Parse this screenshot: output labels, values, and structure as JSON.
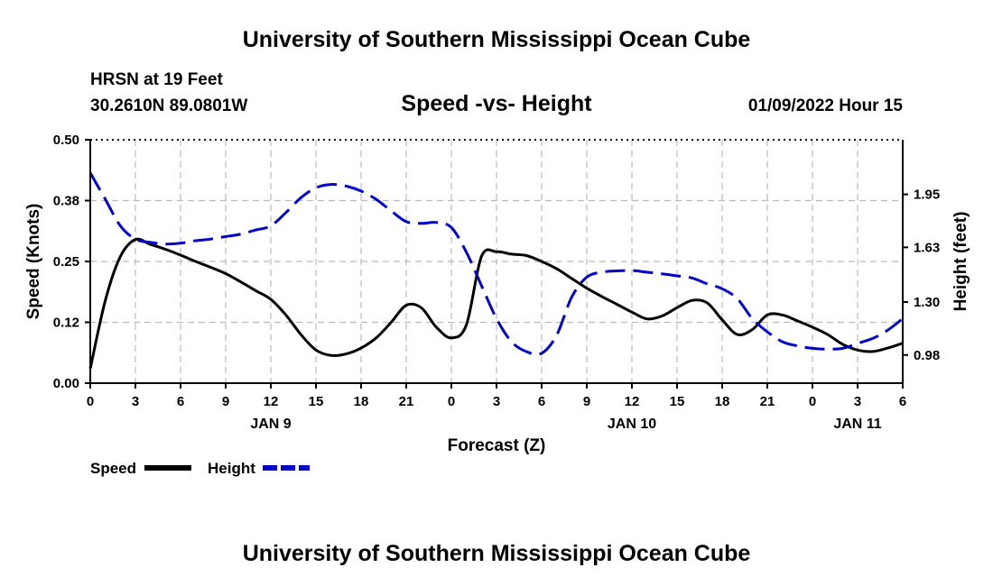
{
  "header": {
    "title": "University of Southern Mississippi Ocean Cube",
    "station": "HRSN at 19 Feet",
    "coords": "30.2610N  89.0801W",
    "subtitle": "Speed -vs- Height",
    "datetime": "01/09/2022 Hour 15"
  },
  "footer": {
    "title": "University of Southern Mississippi Ocean Cube"
  },
  "chart_data": {
    "type": "line",
    "title": "Speed -vs- Height",
    "xlabel": "Forecast (Z)",
    "ylabel": "Speed (Knots)",
    "y2label": "Height (feet)",
    "x_range": [
      0,
      54
    ],
    "ylim": [
      0,
      0.5
    ],
    "y2lim": [
      0.81,
      2.28
    ],
    "x_ticks": [
      0,
      3,
      6,
      9,
      12,
      15,
      18,
      21,
      24,
      27,
      30,
      33,
      36,
      39,
      42,
      45,
      48,
      51,
      54
    ],
    "x_tick_labels": [
      "0",
      "3",
      "6",
      "9",
      "12",
      "15",
      "18",
      "21",
      "0",
      "3",
      "6",
      "9",
      "12",
      "15",
      "18",
      "21",
      "0",
      "3",
      "6"
    ],
    "day_labels": [
      {
        "x": 12,
        "label": "JAN 9"
      },
      {
        "x": 36,
        "label": "JAN 10"
      },
      {
        "x": 51,
        "label": "JAN 11"
      }
    ],
    "y_ticks": [
      0,
      0.125,
      0.25,
      0.375,
      0.5
    ],
    "y_tick_labels": [
      "0.00",
      "0.12",
      "0.25",
      "0.38",
      "0.50"
    ],
    "y2_ticks": [
      0.98,
      1.3,
      1.63,
      1.95
    ],
    "y2_tick_labels": [
      "0.98",
      "1.30",
      "1.63",
      "1.95"
    ],
    "grid": true,
    "legend_position": "bottom-left",
    "series": [
      {
        "name": "Speed",
        "axis": "left",
        "color": "#000000",
        "dash": "solid",
        "x": [
          0,
          1,
          2,
          3,
          4,
          5,
          6,
          7,
          8,
          9,
          10,
          11,
          12,
          13,
          14,
          15,
          16,
          17,
          18,
          19,
          20,
          21,
          22,
          23,
          24,
          25,
          26,
          27,
          28,
          29,
          30,
          31,
          32,
          33,
          34,
          35,
          36,
          37,
          38,
          39,
          40,
          41,
          42,
          43,
          44,
          45,
          46,
          47,
          48,
          49,
          50,
          51,
          52,
          53,
          54
        ],
        "values": [
          0.03,
          0.17,
          0.26,
          0.295,
          0.285,
          0.275,
          0.263,
          0.25,
          0.238,
          0.225,
          0.208,
          0.19,
          0.172,
          0.14,
          0.1,
          0.068,
          0.057,
          0.06,
          0.072,
          0.093,
          0.125,
          0.16,
          0.155,
          0.115,
          0.093,
          0.12,
          0.26,
          0.27,
          0.265,
          0.262,
          0.25,
          0.235,
          0.215,
          0.195,
          0.178,
          0.162,
          0.146,
          0.132,
          0.138,
          0.155,
          0.17,
          0.165,
          0.13,
          0.1,
          0.11,
          0.14,
          0.14,
          0.128,
          0.115,
          0.1,
          0.08,
          0.068,
          0.065,
          0.072,
          0.082
        ]
      },
      {
        "name": "Height",
        "axis": "right",
        "color": "#0000cc",
        "dash": "dashed",
        "x": [
          0,
          1,
          2,
          3,
          4,
          5,
          6,
          7,
          8,
          9,
          10,
          11,
          12,
          13,
          14,
          15,
          16,
          17,
          18,
          19,
          20,
          21,
          22,
          23,
          24,
          25,
          26,
          27,
          28,
          29,
          30,
          31,
          32,
          33,
          34,
          35,
          36,
          37,
          38,
          39,
          40,
          41,
          42,
          43,
          44,
          45,
          46,
          47,
          48,
          49,
          50,
          51,
          52,
          53,
          54
        ],
        "values": [
          2.08,
          1.92,
          1.76,
          1.68,
          1.66,
          1.65,
          1.655,
          1.67,
          1.68,
          1.695,
          1.71,
          1.735,
          1.76,
          1.84,
          1.93,
          1.99,
          2.01,
          2.0,
          1.97,
          1.92,
          1.85,
          1.785,
          1.775,
          1.78,
          1.75,
          1.6,
          1.4,
          1.2,
          1.06,
          1.0,
          0.99,
          1.1,
          1.33,
          1.45,
          1.48,
          1.488,
          1.49,
          1.48,
          1.47,
          1.458,
          1.445,
          1.41,
          1.38,
          1.32,
          1.2,
          1.12,
          1.06,
          1.035,
          1.02,
          1.015,
          1.02,
          1.05,
          1.08,
          1.13,
          1.2
        ]
      }
    ]
  }
}
